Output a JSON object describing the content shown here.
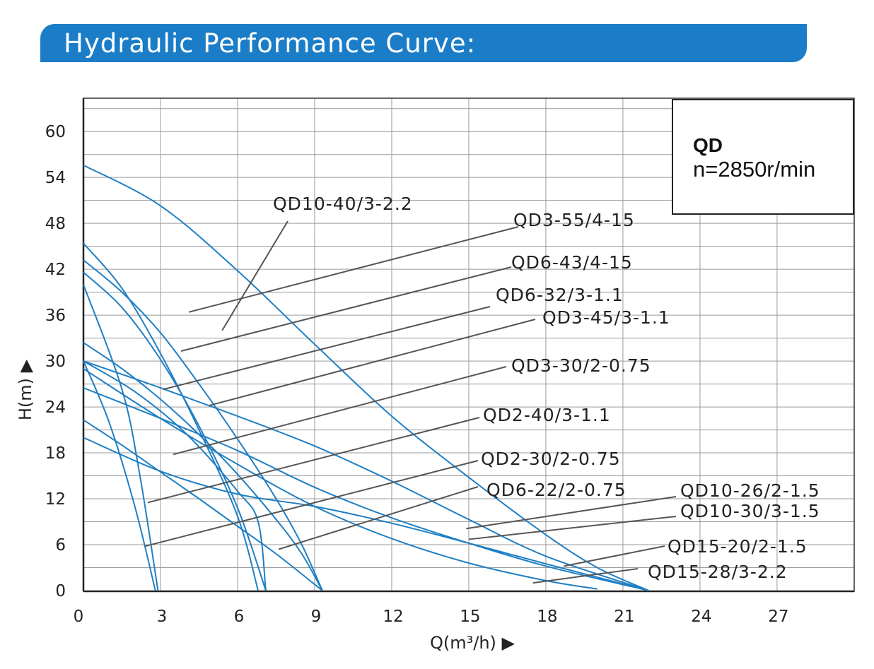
{
  "header": {
    "title": "Hydraulic Performance Curve:"
  },
  "info_box": {
    "model": "QD",
    "speed": "n=2850r/min"
  },
  "colors": {
    "banner": "#1b7dc7",
    "curve": "#1f7fc4",
    "leader": "#555555",
    "grid": "#9a9a9a"
  },
  "chart_data": {
    "type": "line",
    "title": "Hydraulic Performance Curve:",
    "xlabel": "Q(m³/h) ▶",
    "ylabel": "H(m) ▶",
    "xlim": [
      0,
      30
    ],
    "ylim": [
      0,
      63
    ],
    "grid": true,
    "x_ticks": [
      0,
      3,
      6,
      9,
      12,
      15,
      18,
      21,
      24,
      27
    ],
    "y_ticks": [
      0,
      6,
      12,
      18,
      24,
      30,
      36,
      42,
      48,
      54,
      60
    ],
    "series": [
      {
        "name": "QD10-40/3-2.2",
        "points": [
          [
            0,
            55.6
          ],
          [
            3,
            50.3
          ],
          [
            6,
            41.8
          ],
          [
            9,
            32.2
          ],
          [
            12,
            22.8
          ],
          [
            15,
            14.8
          ],
          [
            18,
            7.3
          ],
          [
            20,
            3.0
          ],
          [
            22,
            0
          ]
        ]
      },
      {
        "name": "QD3-55/4-15",
        "points": [
          [
            0,
            45.4
          ],
          [
            1.5,
            39.5
          ],
          [
            3,
            31.0
          ],
          [
            4.5,
            21.0
          ],
          [
            6,
            9.7
          ],
          [
            6.8,
            0
          ]
        ]
      },
      {
        "name": "QD6-43/4-15",
        "points": [
          [
            0,
            43.2
          ],
          [
            1.5,
            39.0
          ],
          [
            3,
            33.7
          ],
          [
            4.5,
            27.0
          ],
          [
            6,
            19.8
          ],
          [
            7.5,
            12.0
          ],
          [
            8.5,
            6.0
          ],
          [
            9.3,
            0
          ]
        ]
      },
      {
        "name": "QD6-32/3-1.1",
        "points": [
          [
            0,
            32.4
          ],
          [
            1.5,
            29.0
          ],
          [
            3,
            25.0
          ],
          [
            4.5,
            20.4
          ],
          [
            6,
            15.2
          ],
          [
            7.5,
            9.3
          ],
          [
            8.5,
            4.8
          ],
          [
            9.3,
            0
          ]
        ]
      },
      {
        "name": "QD3-45/3-1.1",
        "points": [
          [
            0,
            41.6
          ],
          [
            1.5,
            37.0
          ],
          [
            3,
            30.2
          ],
          [
            4.5,
            21.5
          ],
          [
            6,
            10.8
          ],
          [
            7.1,
            0
          ]
        ]
      },
      {
        "name": "QD3-30/2-0.75",
        "points": [
          [
            0,
            40.0
          ],
          [
            1.5,
            26.3
          ],
          [
            2.2,
            15.0
          ],
          [
            2.9,
            0
          ]
        ]
      },
      {
        "name": "QD2-40/3-1.1",
        "points": [
          [
            0,
            30.0
          ],
          [
            1.0,
            22.0
          ],
          [
            2.0,
            11.0
          ],
          [
            2.8,
            0
          ]
        ]
      },
      {
        "name": "QD2-30/2-0.75",
        "points": [
          [
            0,
            30.0
          ],
          [
            2.0,
            26.0
          ],
          [
            4.0,
            20.5
          ],
          [
            6.0,
            13.0
          ],
          [
            6.8,
            9.0
          ],
          [
            7.1,
            0
          ]
        ]
      },
      {
        "name": "QD6-22/2-0.75",
        "points": [
          [
            0,
            22.3
          ],
          [
            1.5,
            19.0
          ],
          [
            3,
            15.5
          ],
          [
            4.5,
            12.0
          ],
          [
            6,
            8.4
          ],
          [
            7.5,
            4.8
          ],
          [
            9.3,
            0
          ]
        ]
      },
      {
        "name": "QD10-26/2-1.5",
        "points": [
          [
            0,
            26.5
          ],
          [
            3,
            22.5
          ],
          [
            6,
            18.3
          ],
          [
            9,
            13.5
          ],
          [
            12,
            9.5
          ],
          [
            15,
            6.2
          ],
          [
            18,
            3.2
          ],
          [
            22,
            0
          ]
        ]
      },
      {
        "name": "QD10-30/3-1.5",
        "points": [
          [
            0,
            29.0
          ],
          [
            3,
            22.5
          ],
          [
            6,
            16.5
          ],
          [
            9,
            11.0
          ],
          [
            12,
            6.8
          ],
          [
            15,
            3.6
          ],
          [
            18,
            1.3
          ],
          [
            20,
            0.2
          ]
        ]
      },
      {
        "name": "QD15-20/2-1.5",
        "points": [
          [
            0,
            20.0
          ],
          [
            3,
            15.6
          ],
          [
            6,
            12.6
          ],
          [
            9,
            11.0
          ],
          [
            12,
            8.8
          ],
          [
            15,
            6.2
          ],
          [
            18,
            3.5
          ],
          [
            22,
            0
          ]
        ]
      },
      {
        "name": "QD15-28/3-2.2",
        "points": [
          [
            0,
            30.0
          ],
          [
            3,
            26.5
          ],
          [
            6,
            22.8
          ],
          [
            9,
            18.9
          ],
          [
            12,
            14.3
          ],
          [
            15,
            9.3
          ],
          [
            18,
            4.5
          ],
          [
            22,
            0
          ]
        ]
      }
    ],
    "annotations": [
      {
        "label": "QD10-40/3-2.2",
        "anchor": [
          5.4,
          34.0
        ]
      },
      {
        "label": "QD3-55/4-15",
        "anchor": [
          4.1,
          36.4
        ]
      },
      {
        "label": "QD6-43/4-15",
        "anchor": [
          3.8,
          31.3
        ]
      },
      {
        "label": "QD6-32/3-1.1",
        "anchor": [
          3.1,
          26.3
        ]
      },
      {
        "label": "QD3-45/3-1.1",
        "anchor": [
          4.9,
          24.2
        ]
      },
      {
        "label": "QD3-30/2-0.75",
        "anchor": [
          3.5,
          17.8
        ]
      },
      {
        "label": "QD2-40/3-1.1",
        "anchor": [
          2.5,
          11.5
        ]
      },
      {
        "label": "QD2-30/2-0.75",
        "anchor": [
          2.4,
          5.8
        ]
      },
      {
        "label": "QD6-22/2-0.75",
        "anchor": [
          7.6,
          5.4
        ]
      },
      {
        "label": "QD10-26/2-1.5",
        "anchor": [
          14.9,
          8.1
        ]
      },
      {
        "label": "QD10-30/3-1.5",
        "anchor": [
          15.0,
          6.7
        ]
      },
      {
        "label": "QD15-20/2-1.5",
        "anchor": [
          18.7,
          3.2
        ]
      },
      {
        "label": "QD15-28/3-2.2",
        "anchor": [
          17.5,
          1.0
        ]
      }
    ]
  }
}
